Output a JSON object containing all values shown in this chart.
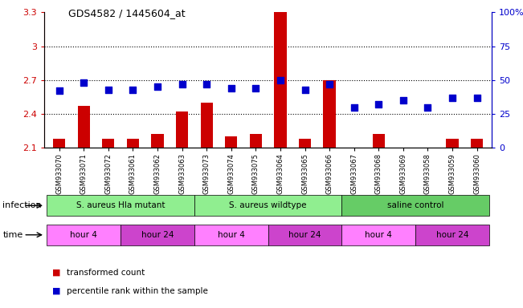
{
  "title": "GDS4582 / 1445604_at",
  "samples": [
    "GSM933070",
    "GSM933071",
    "GSM933072",
    "GSM933061",
    "GSM933062",
    "GSM933063",
    "GSM933073",
    "GSM933074",
    "GSM933075",
    "GSM933064",
    "GSM933065",
    "GSM933066",
    "GSM933067",
    "GSM933068",
    "GSM933069",
    "GSM933058",
    "GSM933059",
    "GSM933060"
  ],
  "red_values": [
    2.18,
    2.47,
    2.18,
    2.18,
    2.22,
    2.42,
    2.5,
    2.2,
    2.22,
    3.3,
    2.18,
    2.7,
    2.1,
    2.22,
    2.1,
    2.1,
    2.18,
    2.18
  ],
  "blue_values": [
    42,
    48,
    43,
    43,
    45,
    47,
    47,
    44,
    44,
    50,
    43,
    47,
    30,
    32,
    35,
    30,
    37,
    37
  ],
  "ylim_left": [
    2.1,
    3.3
  ],
  "ylim_right": [
    0,
    100
  ],
  "yticks_left": [
    2.1,
    2.4,
    2.7,
    3.0,
    3.3
  ],
  "ytick_labels_left": [
    "2.1",
    "2.4",
    "2.7",
    "3",
    "3.3"
  ],
  "yticks_right": [
    0,
    25,
    50,
    75,
    100
  ],
  "ytick_labels_right": [
    "0",
    "25",
    "50",
    "75",
    "100%"
  ],
  "hlines": [
    3.0,
    2.7,
    2.4
  ],
  "infection_groups": [
    {
      "label": "S. aureus Hla mutant",
      "start": 0,
      "end": 6,
      "color": "#90EE90"
    },
    {
      "label": "S. aureus wildtype",
      "start": 6,
      "end": 12,
      "color": "#90EE90"
    },
    {
      "label": "saline control",
      "start": 12,
      "end": 18,
      "color": "#66CC66"
    }
  ],
  "time_groups": [
    {
      "label": "hour 4",
      "start": 0,
      "end": 3,
      "color": "#FF80FF"
    },
    {
      "label": "hour 24",
      "start": 3,
      "end": 6,
      "color": "#CC44CC"
    },
    {
      "label": "hour 4",
      "start": 6,
      "end": 9,
      "color": "#FF80FF"
    },
    {
      "label": "hour 24",
      "start": 9,
      "end": 12,
      "color": "#CC44CC"
    },
    {
      "label": "hour 4",
      "start": 12,
      "end": 15,
      "color": "#FF80FF"
    },
    {
      "label": "hour 24",
      "start": 15,
      "end": 18,
      "color": "#CC44CC"
    }
  ],
  "bar_color": "#CC0000",
  "dot_color": "#0000CC",
  "bar_base": 2.1,
  "bar_width": 0.5,
  "dot_size": 30,
  "grid_color": "#000000",
  "background_color": "#ffffff",
  "plot_bg_color": "#ffffff",
  "left_axis_color": "#CC0000",
  "right_axis_color": "#0000CC",
  "infection_label": "infection",
  "time_label": "time",
  "legend_red": "transformed count",
  "legend_blue": "percentile rank within the sample"
}
